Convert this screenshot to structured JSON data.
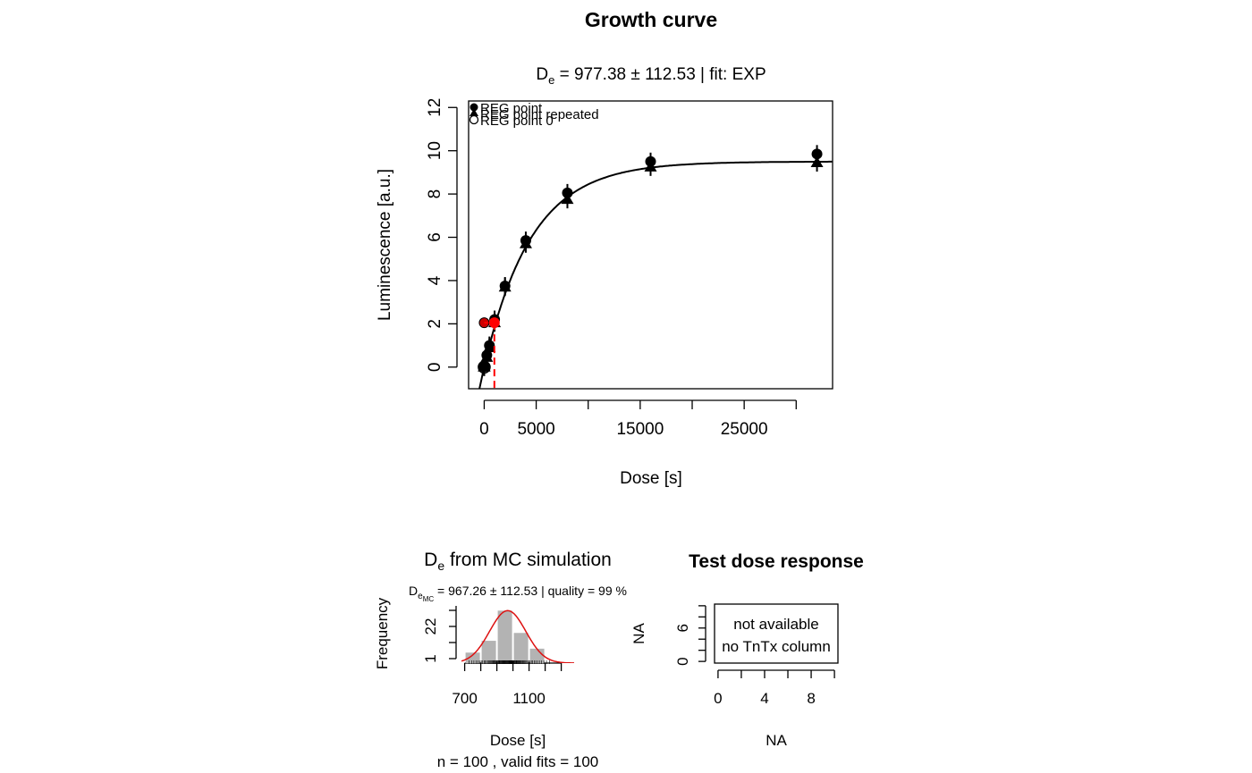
{
  "figure": {
    "main_title": "Growth curve"
  },
  "chart_data": [
    {
      "type": "scatter",
      "title": "Growth curve",
      "subtitle_prefix": "D",
      "subtitle_sub": "e",
      "subtitle_rest": " = 977.38 ± 112.53  | fit:  EXP",
      "xlabel": "Dose [s]",
      "ylabel": "Luminescence [a.u.]",
      "xlim": [
        -1500,
        33500
      ],
      "ylim": [
        -1,
        12.3
      ],
      "x_ticks": [
        0,
        5000,
        10000,
        15000,
        20000,
        25000,
        30000
      ],
      "x_tick_labels": [
        "0",
        "5000",
        "15000",
        "25000"
      ],
      "x_tick_label_values": [
        0,
        5000,
        15000,
        25000
      ],
      "y_ticks": [
        0,
        2,
        4,
        6,
        8,
        10,
        12
      ],
      "y_tick_labels": [
        "0",
        "2",
        "4",
        "6",
        "8",
        "10",
        "12"
      ],
      "legend": {
        "position": "top-left",
        "entries": [
          "REG point",
          "REG point repeated",
          "REG point 0"
        ]
      },
      "fit": {
        "model": "EXP",
        "a": 9.5,
        "c": 1.0,
        "b": 4550
      },
      "series": [
        {
          "name": "REG point",
          "marker": "filled-circle",
          "points": [
            {
              "x": 0,
              "y": 0.02
            },
            {
              "x": 250,
              "y": 0.55
            },
            {
              "x": 500,
              "y": 1.0
            },
            {
              "x": 1000,
              "y": 2.2
            },
            {
              "x": 2000,
              "y": 3.75
            },
            {
              "x": 4000,
              "y": 5.85
            },
            {
              "x": 8000,
              "y": 8.05
            },
            {
              "x": 16000,
              "y": 9.5
            },
            {
              "x": 32000,
              "y": 9.85
            }
          ]
        },
        {
          "name": "REG point repeated",
          "marker": "filled-triangle",
          "points": [
            {
              "x": 0,
              "y": 0.0
            },
            {
              "x": 250,
              "y": 0.45
            },
            {
              "x": 500,
              "y": 0.9
            },
            {
              "x": 1000,
              "y": 2.05
            },
            {
              "x": 2000,
              "y": 3.7
            },
            {
              "x": 4000,
              "y": 5.7
            },
            {
              "x": 8000,
              "y": 7.75
            },
            {
              "x": 16000,
              "y": 9.25
            },
            {
              "x": 32000,
              "y": 9.45
            }
          ]
        },
        {
          "name": "REG point 0",
          "marker": "open-circle",
          "points": [
            {
              "x": 0,
              "y": 0.0
            }
          ]
        }
      ],
      "de_point": {
        "x": 977.38,
        "y": 2.05,
        "err": 112.53,
        "color": "#ff0000"
      },
      "natural_point": {
        "x": 0,
        "y": 2.05,
        "color": "#cc0000"
      }
    },
    {
      "type": "bar",
      "title_prefix": "D",
      "title_sub": "e",
      "title_rest": " from MC simulation",
      "subtitle_prefix": "D",
      "subtitle_sub": "e",
      "subtitle_subsub": "MC",
      "subtitle_rest": " = 967.26 ± 112.53  | quality =  99 %",
      "xlabel": "Dose [s]",
      "ylabel": "Frequency",
      "footnote": "n =  100 , valid fits = 100",
      "xlim": [
        680,
        1380
      ],
      "ylim": [
        0,
        45
      ],
      "x_ticks": [
        700,
        800,
        900,
        1000,
        1100,
        1200,
        1300
      ],
      "x_tick_labels": [
        "700",
        "1100"
      ],
      "x_tick_label_values": [
        700,
        1100
      ],
      "y_ticks": [
        1,
        22
      ],
      "y_tick_labels": [
        "1",
        "22"
      ],
      "bins": [
        {
          "from": 700,
          "to": 800,
          "count": 8
        },
        {
          "from": 800,
          "to": 900,
          "count": 17
        },
        {
          "from": 900,
          "to": 1000,
          "count": 40
        },
        {
          "from": 1000,
          "to": 1100,
          "count": 23
        },
        {
          "from": 1100,
          "to": 1200,
          "count": 11
        }
      ],
      "bar_color": "#b3b3b3",
      "normal_curve": {
        "mean": 967.26,
        "sd": 112.53,
        "peak": 40,
        "color": "#dd1111"
      }
    },
    {
      "type": "scatter",
      "title": "Test dose response",
      "xlabel": "NA",
      "ylabel": "NA",
      "xlim": [
        -0.3,
        10.3
      ],
      "ylim": [
        -0.3,
        10.3
      ],
      "x_ticks": [
        0,
        2,
        4,
        6,
        8,
        10
      ],
      "x_tick_labels": [
        "0",
        "4",
        "8"
      ],
      "x_tick_label_values": [
        0,
        4,
        8
      ],
      "y_ticks": [
        0,
        2,
        4,
        6,
        8,
        10
      ],
      "y_tick_labels": [
        "0",
        "6"
      ],
      "y_tick_label_values": [
        0,
        6
      ],
      "message_line1": "not available",
      "message_line2": "no TnTx column"
    }
  ]
}
